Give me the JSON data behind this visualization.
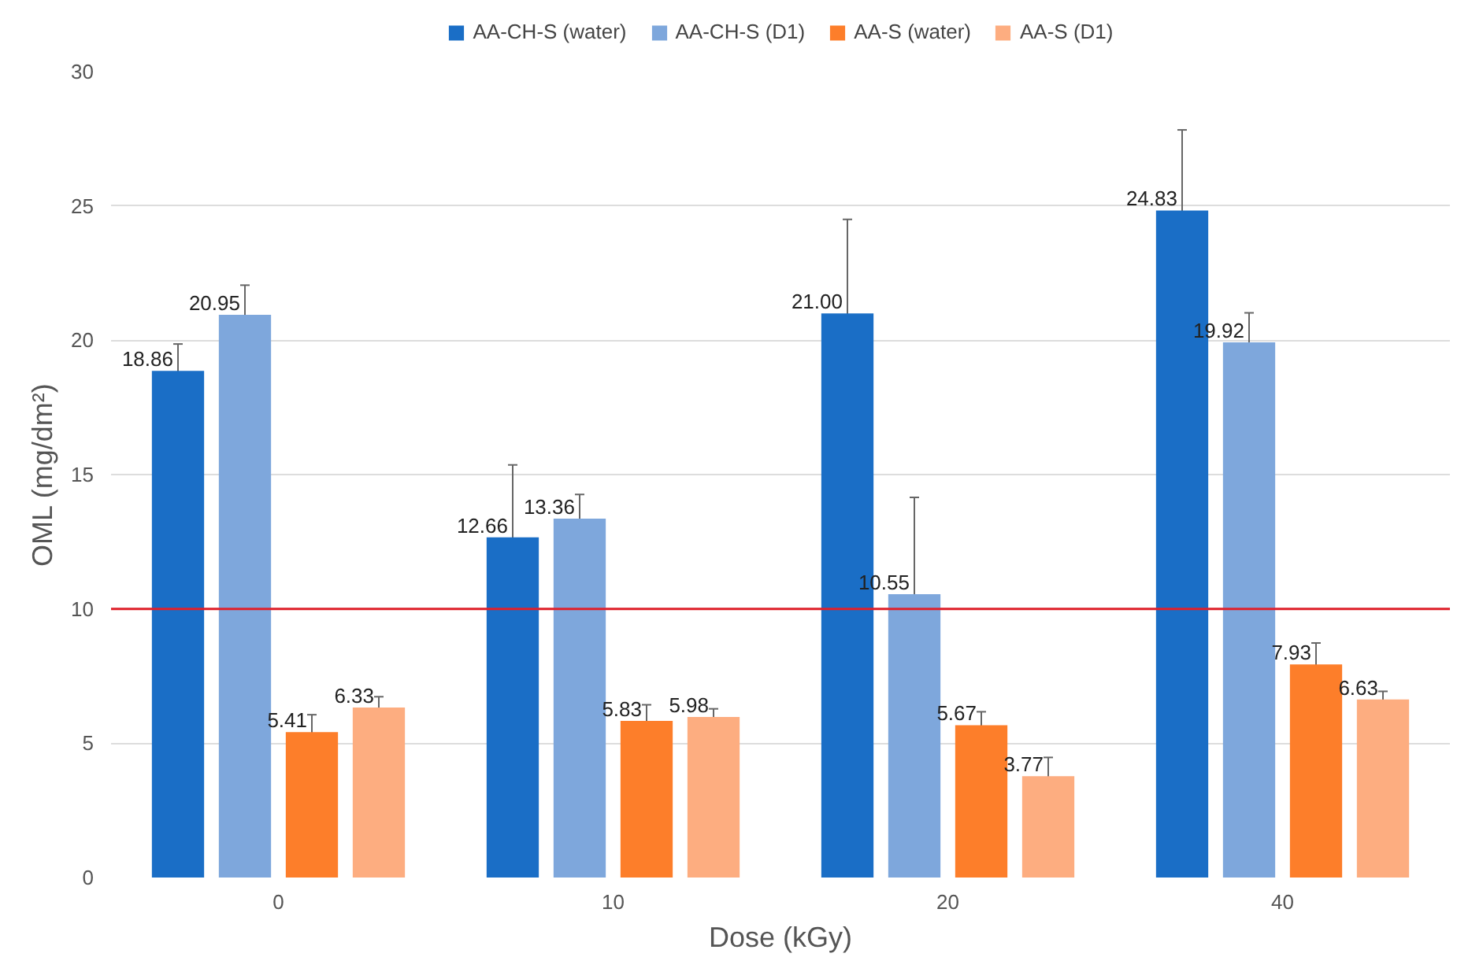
{
  "chart_data": {
    "type": "bar",
    "xlabel": "Dose (kGy)",
    "ylabel": "OML (mg/dm²)",
    "categories": [
      "0",
      "10",
      "20",
      "40"
    ],
    "series": [
      {
        "name": "AA-CH-S (water)",
        "color": "#1a6ec6",
        "values": [
          18.86,
          12.66,
          21.0,
          24.83
        ],
        "errors": [
          1.0,
          2.7,
          3.5,
          3.0
        ],
        "value_labels": [
          "18.86",
          "12.66",
          "21.00",
          "24.83"
        ]
      },
      {
        "name": "AA-CH-S (D1)",
        "color": "#7ea7dc",
        "values": [
          20.95,
          13.36,
          10.55,
          19.92
        ],
        "errors": [
          1.1,
          0.9,
          3.6,
          1.1
        ],
        "value_labels": [
          "20.95",
          "13.36",
          "10.55",
          "19.92"
        ]
      },
      {
        "name": "AA-S (water)",
        "color": "#fd7e2a",
        "values": [
          5.41,
          5.83,
          5.67,
          7.93
        ],
        "errors": [
          0.65,
          0.6,
          0.5,
          0.8
        ],
        "value_labels": [
          "5.41",
          "5.83",
          "5.67",
          "7.93"
        ]
      },
      {
        "name": "AA-S (D1)",
        "color": "#fdad80",
        "values": [
          6.33,
          5.98,
          3.77,
          6.63
        ],
        "errors": [
          0.4,
          0.3,
          0.7,
          0.3
        ],
        "value_labels": [
          "6.33",
          "5.98",
          "3.77",
          "6.63"
        ]
      }
    ],
    "ylim": [
      0,
      30
    ],
    "yticks": [
      0,
      5,
      10,
      15,
      20,
      25,
      30
    ],
    "grid": "y",
    "legend": "top",
    "ref_lines": [
      {
        "axis": "y",
        "value": 10,
        "color": "#e0202a"
      }
    ]
  }
}
